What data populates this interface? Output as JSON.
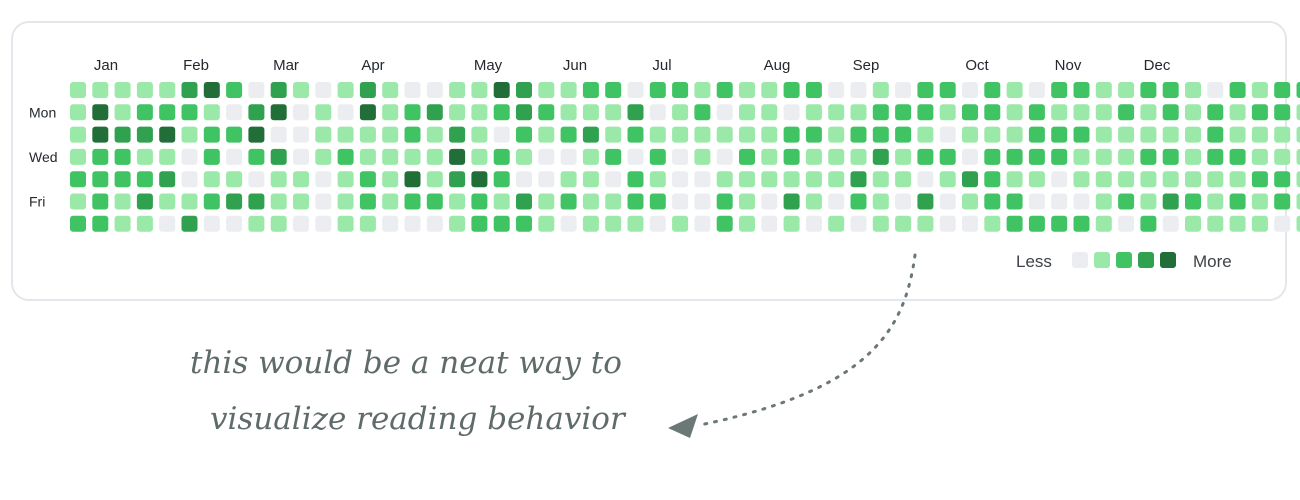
{
  "chart_data": {
    "type": "heatmap",
    "months": [
      "Jan",
      "Feb",
      "Mar",
      "Apr",
      "May",
      "Jun",
      "Jul",
      "Aug",
      "Sep",
      "Oct",
      "Nov",
      "Dec"
    ],
    "weekday_labels": [
      "",
      "Mon",
      "",
      "Wed",
      "",
      "Fri",
      ""
    ],
    "legend": {
      "less": "Less",
      "more": "More"
    },
    "levels": [
      0,
      1,
      2,
      3,
      4
    ],
    "colors": [
      "#ebedf0",
      "#9be9a8",
      "#40c463",
      "#30a14e",
      "#216e39"
    ],
    "grid": [
      "1111134203101310011431122022121122001022021022112210212220",
      "1412221034010412311232111301201101112221221211121212122110",
      "143341224001111213102123121111112212221011122211111211111",
      "1221102023012111141210012020102121113122022221112212211121",
      "2222301101101214134200110210011111131101321101111111122111",
      "12131123311012122121312112200210310210301220001213212121211",
      "2211030011001100012221011101021010101110012222102011110111"
    ]
  },
  "annotation": {
    "line1": "this would be a neat way to",
    "line2": "visualize reading behavior"
  }
}
